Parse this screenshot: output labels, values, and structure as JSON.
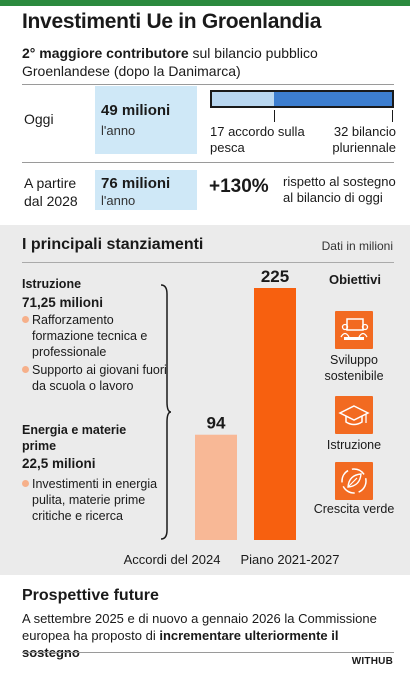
{
  "header": {
    "title": "Investimenti Ue in Groenlandia",
    "subtitle_bold": "2° maggiore contributore",
    "subtitle_rest": " sul bilancio pubblico Groenlandese (dopo la Danimarca)"
  },
  "today": {
    "label": "Oggi",
    "amount": "49 milioni",
    "unit": "l'anno",
    "breakdown_bar": {
      "total": 49,
      "segments": [
        {
          "value": 17,
          "label": "17 accordo sulla pesca",
          "color": "#b9d7f0"
        },
        {
          "value": 32,
          "label": "32 bilancio pluriennale",
          "color": "#3d7ecf"
        }
      ]
    }
  },
  "from2028": {
    "label": "A partire dal 2028",
    "amount": "76 milioni",
    "unit": "l'anno",
    "increase": "+130%",
    "increase_text": "rispetto al sostegno al bilancio di oggi"
  },
  "allocations": {
    "title": "I principali stanziamenti",
    "note": "Dati in milioni",
    "education": {
      "title": "Istruzione",
      "amount": "71,25 milioni",
      "bullets": [
        "Rafforzamento formazione tecnica e professionale",
        "Supporto ai giovani fuori da scuola o lavoro"
      ]
    },
    "energy": {
      "title": "Energia e materie prime",
      "amount": "22,5 milioni",
      "bullets": [
        "Investimenti in energia pulita, materie prime critiche e ricerca"
      ]
    },
    "objectives": {
      "title": "Obiettivi",
      "items": [
        {
          "label": "Sviluppo sostenibile",
          "icon": "meeting-people-icon"
        },
        {
          "label": "Istruzione",
          "icon": "graduation-cap-icon"
        },
        {
          "label": "Crescita verde",
          "icon": "leaf-circle-icon"
        }
      ]
    }
  },
  "chart_data": {
    "type": "bar",
    "categories": [
      "Accordi del 2024",
      "Piano 2021-2027"
    ],
    "values": [
      94,
      225
    ],
    "colors": [
      "#f8b896",
      "#f7600f"
    ],
    "ylim": [
      0,
      225
    ],
    "title": "",
    "xlabel": "",
    "ylabel": ""
  },
  "future": {
    "title": "Prospettive future",
    "text_start": "A settembre 2025 e di nuovo a gennaio 2026 la Commissione europea ha proposto di ",
    "text_bold": "incrementare ulteriormente il sostegno"
  },
  "brand": "WITHUB"
}
